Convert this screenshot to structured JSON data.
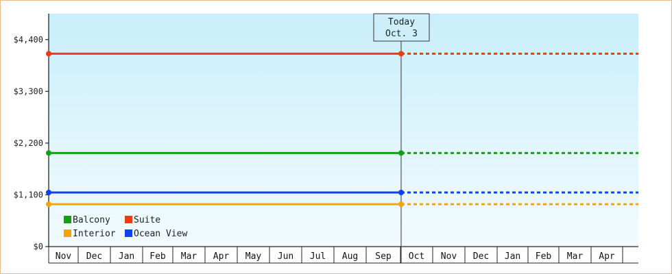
{
  "chart_data": {
    "type": "line",
    "title": "",
    "xlabel": "",
    "ylabel": "",
    "ylim": [
      0,
      4950
    ],
    "y_ticks": [
      {
        "value": 0,
        "label": "$0"
      },
      {
        "value": 1100,
        "label": "$1,100"
      },
      {
        "value": 2200,
        "label": "$2,200"
      },
      {
        "value": 3300,
        "label": "$3,300"
      },
      {
        "value": 4400,
        "label": "$4,400"
      }
    ],
    "months": [
      "Nov",
      "Dec",
      "Jan",
      "Feb",
      "Mar",
      "Apr",
      "May",
      "Jun",
      "Jul",
      "Aug",
      "Sep",
      "Oct",
      "Nov",
      "Dec",
      "Jan",
      "Feb",
      "Mar",
      "Apr"
    ],
    "today_index": 11,
    "today_label_line1": "Today",
    "today_label_line2": "Oct. 3",
    "legend_placement": "bottom-left",
    "grid": false,
    "series": [
      {
        "name": "Balcony",
        "color": "#11a011",
        "value": 1990
      },
      {
        "name": "Suite",
        "color": "#f03a10",
        "value": 4100
      },
      {
        "name": "Interior",
        "color": "#f5a500",
        "value": 900
      },
      {
        "name": "Ocean View",
        "color": "#1040f0",
        "value": 1150
      }
    ]
  }
}
